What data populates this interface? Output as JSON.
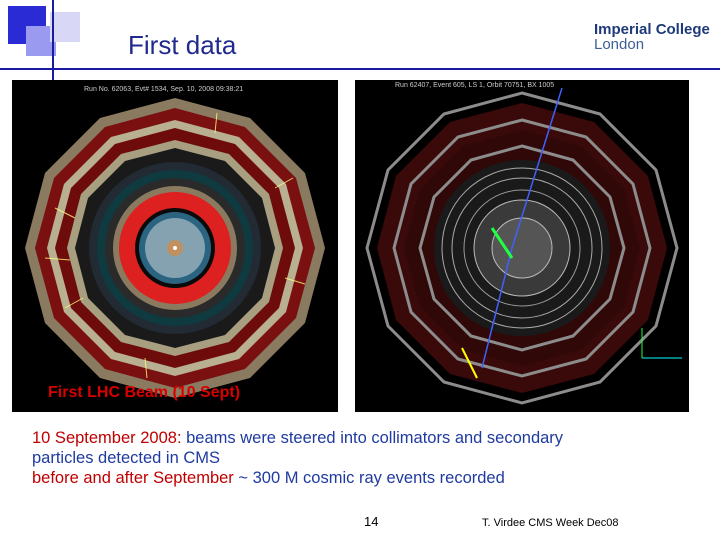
{
  "slide": {
    "title": "First data",
    "logo": {
      "line1": "Imperial College",
      "line2": "London"
    },
    "left_panel": {
      "run_info": "Run No. 62063, Evt# 1534, Sep. 10, 2008 09:38:21",
      "caption": "First LHC Beam (10 Sept)"
    },
    "right_panel": {
      "run_info": "Run 62407, Event 605, LS 1, Orbit 70751, BX 1005"
    },
    "body": {
      "line1_red": "10 September 2008:",
      "line1_blue": " beams were steered into collimators and secondary",
      "line2": "particles detected in CMS",
      "line3_red": "before and after September",
      "line3_blue": " ~ 300 M cosmic ray events recorded"
    },
    "page_number": "14",
    "footer": "T. Virdee CMS Week Dec08"
  },
  "colors": {
    "title": "#1f2a8c",
    "highlight_red": "#c00000",
    "body_blue": "#1f3aa0",
    "caption_red": "#d80000"
  }
}
